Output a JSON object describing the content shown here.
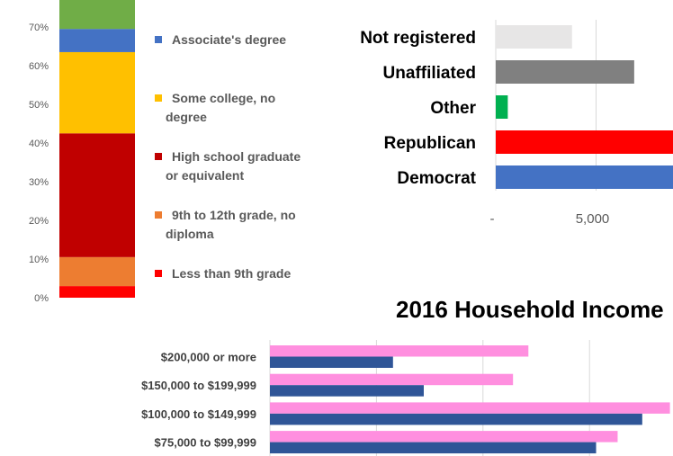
{
  "chart_data": [
    {
      "type": "bar",
      "orientation": "vertical",
      "stacked": true,
      "ylim": [
        0,
        77
      ],
      "yticks": [
        "0%",
        "10%",
        "20%",
        "30%",
        "40%",
        "50%",
        "60%",
        "70%"
      ],
      "grid": false,
      "legend_position": "right",
      "series": [
        {
          "name": "Less than 9th grade",
          "value": 3,
          "color": "#ff0000"
        },
        {
          "name": "9th to 12th grade, no diploma",
          "value": 7.5,
          "color": "#ed7d31"
        },
        {
          "name": "High school graduate or equivalent",
          "value": 32,
          "color": "#c00000"
        },
        {
          "name": "Some college, no degree",
          "value": 21,
          "color": "#ffc000"
        },
        {
          "name": "Associate's degree",
          "value": 6,
          "color": "#4472c4"
        },
        {
          "name": "",
          "value": 7.5,
          "color": "#70ad47"
        }
      ],
      "legend": [
        {
          "lines": [
            "Associate's degree"
          ],
          "color": "#4472c4"
        },
        {
          "lines": [
            "Some college, no",
            "degree"
          ],
          "color": "#ffc000"
        },
        {
          "lines": [
            "High school graduate",
            "or equivalent"
          ],
          "color": "#c00000"
        },
        {
          "lines": [
            "9th to 12th grade, no",
            "diploma"
          ],
          "color": "#ed7d31"
        },
        {
          "lines": [
            "Less than 9th grade"
          ],
          "color": "#ff0000"
        }
      ]
    },
    {
      "type": "bar",
      "orientation": "horizontal",
      "categories": [
        "Not registered",
        "Unaffiliated",
        "Other",
        "Republican",
        "Democrat"
      ],
      "values": [
        3800,
        6900,
        600,
        9000,
        9000
      ],
      "colors": [
        "#e7e6e6",
        "#808080",
        "#00b050",
        "#ff0000",
        "#4472c4"
      ],
      "xticks": [
        {
          "value": 0,
          "label": "-"
        },
        {
          "value": 5000,
          "label": "5,000"
        }
      ],
      "grid": true
    },
    {
      "type": "bar",
      "orientation": "horizontal",
      "title": "2016 Household Income",
      "categories": [
        "$200,000 or more",
        "$150,000 to $199,999",
        "$100,000 to $149,999",
        "$75,000 to $99,999"
      ],
      "series": [
        {
          "name": "",
          "color": "#ff8fdf",
          "values": [
            8.4,
            7.9,
            13.0,
            11.3
          ]
        },
        {
          "name": "",
          "color": "#2f5597",
          "values": [
            4.0,
            5.0,
            12.1,
            10.6
          ]
        }
      ],
      "grid": true
    }
  ]
}
